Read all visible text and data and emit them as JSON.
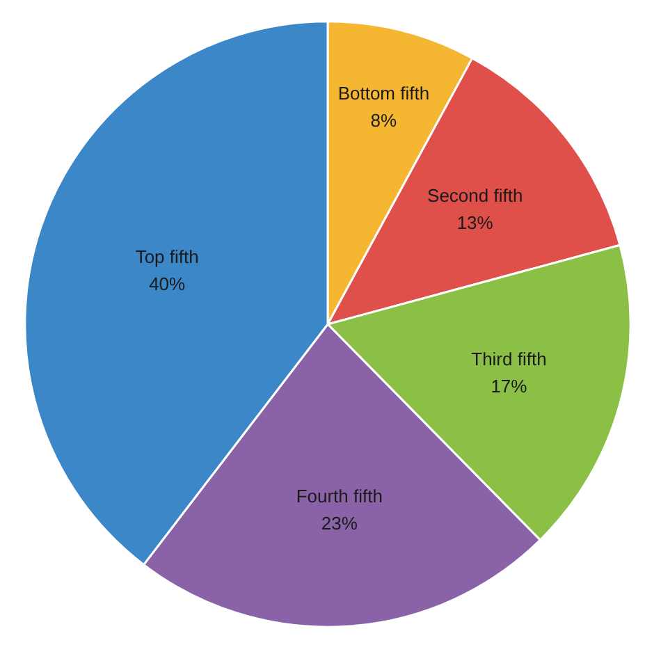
{
  "chart_data": {
    "type": "pie",
    "categories": [
      "Bottom fifth",
      "Second fifth",
      "Third fifth",
      "Fourth fifth",
      "Top fifth"
    ],
    "values": [
      8,
      13,
      17,
      23,
      40
    ],
    "value_labels": [
      "8%",
      "13%",
      "17%",
      "23%",
      "40%"
    ],
    "colors": [
      "#f5b731",
      "#e0504a",
      "#8cbf45",
      "#8a62a8",
      "#3b87c8"
    ]
  }
}
